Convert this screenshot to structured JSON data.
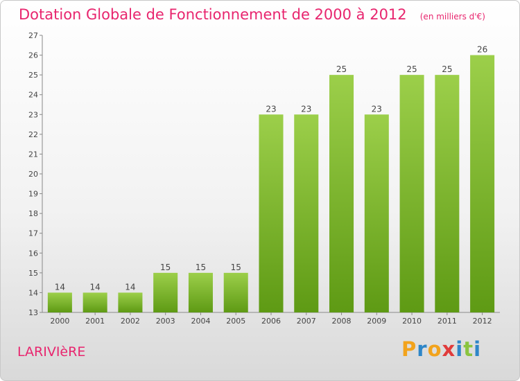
{
  "chart": {
    "title": "Dotation Globale de Fonctionnement de 2000 à 2012",
    "subtitle": "(en milliers d'€)",
    "commune": "LARIVIèRE",
    "logo": {
      "letters": [
        "P",
        "r",
        "o",
        "x",
        "i",
        "t",
        "i"
      ],
      "colors": [
        "#f2a31c",
        "#2e86c8",
        "#f2a31c",
        "#e03b3b",
        "#2e86c8",
        "#8ac43f",
        "#2e86c8"
      ]
    }
  },
  "chart_data": {
    "type": "bar",
    "categories": [
      "2000",
      "2001",
      "2002",
      "2003",
      "2004",
      "2005",
      "2006",
      "2007",
      "2008",
      "2009",
      "2010",
      "2011",
      "2012"
    ],
    "values": [
      14,
      14,
      14,
      15,
      15,
      15,
      23,
      23,
      25,
      23,
      25,
      25,
      26
    ],
    "data_labels": [
      "14",
      "14",
      "14",
      "15",
      "15",
      "15",
      "23",
      "23",
      "25",
      "23",
      "25",
      "25",
      "26"
    ],
    "ylim": [
      13,
      27
    ],
    "yticks": [
      13,
      14,
      15,
      16,
      17,
      18,
      19,
      20,
      21,
      22,
      23,
      24,
      25,
      26,
      27
    ],
    "grid": false,
    "bar_color": "#7dbb2f"
  }
}
